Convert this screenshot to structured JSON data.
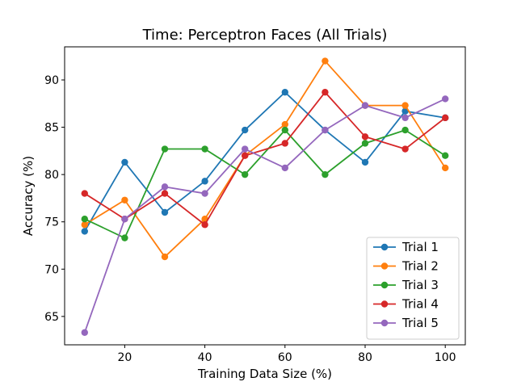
{
  "chart_data": {
    "type": "line",
    "title": "Time: Perceptron Faces (All Trials)",
    "xlabel": "Training Data Size (%)",
    "ylabel": "Accuracy (%)",
    "x": [
      10,
      20,
      30,
      40,
      50,
      60,
      70,
      80,
      90,
      100
    ],
    "xlim": [
      5,
      105
    ],
    "ylim": [
      62,
      93.5
    ],
    "xticks": [
      20,
      40,
      60,
      80,
      100
    ],
    "yticks": [
      65,
      70,
      75,
      80,
      85,
      90
    ],
    "grid": false,
    "legend_position": "lower-right",
    "series": [
      {
        "name": "Trial 1",
        "color": "#1f77b4",
        "values": [
          74.0,
          81.3,
          76.0,
          79.3,
          84.7,
          88.7,
          84.7,
          81.3,
          86.7,
          86.0
        ]
      },
      {
        "name": "Trial 2",
        "color": "#ff7f0e",
        "values": [
          74.7,
          77.3,
          71.3,
          75.3,
          82.0,
          85.3,
          92.0,
          87.3,
          87.3,
          80.7
        ]
      },
      {
        "name": "Trial 3",
        "color": "#2ca02c",
        "values": [
          75.3,
          73.3,
          82.7,
          82.7,
          80.0,
          84.7,
          80.0,
          83.3,
          84.7,
          82.0
        ]
      },
      {
        "name": "Trial 4",
        "color": "#d62728",
        "values": [
          78.0,
          75.3,
          78.0,
          74.7,
          82.0,
          83.3,
          88.7,
          84.0,
          82.7,
          86.0
        ]
      },
      {
        "name": "Trial 5",
        "color": "#9467bd",
        "values": [
          63.3,
          75.3,
          78.7,
          78.0,
          82.7,
          80.7,
          84.7,
          87.3,
          86.0,
          88.0
        ]
      }
    ]
  }
}
